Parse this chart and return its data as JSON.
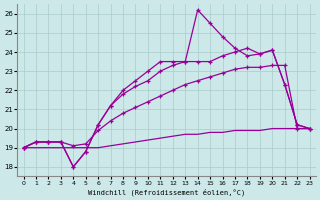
{
  "xlabel": "Windchill (Refroidissement éolien,°C)",
  "background_color": "#cce8e8",
  "grid_color": "#aacccc",
  "line_color": "#990099",
  "xlim": [
    -0.5,
    23.5
  ],
  "ylim": [
    17.5,
    26.5
  ],
  "yticks": [
    18,
    19,
    20,
    21,
    22,
    23,
    24,
    25,
    26
  ],
  "xticks": [
    0,
    1,
    2,
    3,
    4,
    5,
    6,
    7,
    8,
    9,
    10,
    11,
    12,
    13,
    14,
    15,
    16,
    17,
    18,
    19,
    20,
    21,
    22,
    23
  ],
  "series": [
    {
      "y": [
        19.0,
        19.0,
        19.0,
        19.0,
        19.0,
        19.0,
        19.0,
        19.1,
        19.2,
        19.3,
        19.4,
        19.5,
        19.6,
        19.7,
        19.7,
        19.8,
        19.8,
        19.9,
        19.9,
        19.9,
        20.0,
        20.0,
        20.0,
        20.0
      ]
    },
    {
      "y": [
        19.0,
        19.3,
        19.3,
        19.3,
        19.1,
        19.2,
        19.9,
        20.4,
        20.8,
        21.1,
        21.4,
        21.7,
        22.0,
        22.3,
        22.5,
        22.7,
        22.9,
        23.1,
        23.2,
        23.2,
        23.3,
        23.3,
        20.0,
        20.0
      ]
    },
    {
      "y": [
        19.0,
        19.3,
        19.3,
        19.3,
        18.0,
        18.8,
        20.2,
        21.2,
        21.8,
        22.2,
        22.5,
        23.0,
        23.3,
        23.5,
        23.5,
        23.5,
        23.8,
        24.0,
        24.2,
        23.9,
        24.1,
        22.3,
        20.2,
        20.0
      ]
    },
    {
      "y": [
        19.0,
        19.3,
        19.3,
        19.3,
        18.0,
        18.8,
        20.2,
        21.2,
        22.0,
        22.5,
        23.0,
        23.5,
        23.5,
        23.5,
        26.2,
        25.5,
        24.8,
        24.2,
        23.8,
        23.9,
        24.1,
        22.3,
        20.2,
        20.0
      ]
    }
  ]
}
